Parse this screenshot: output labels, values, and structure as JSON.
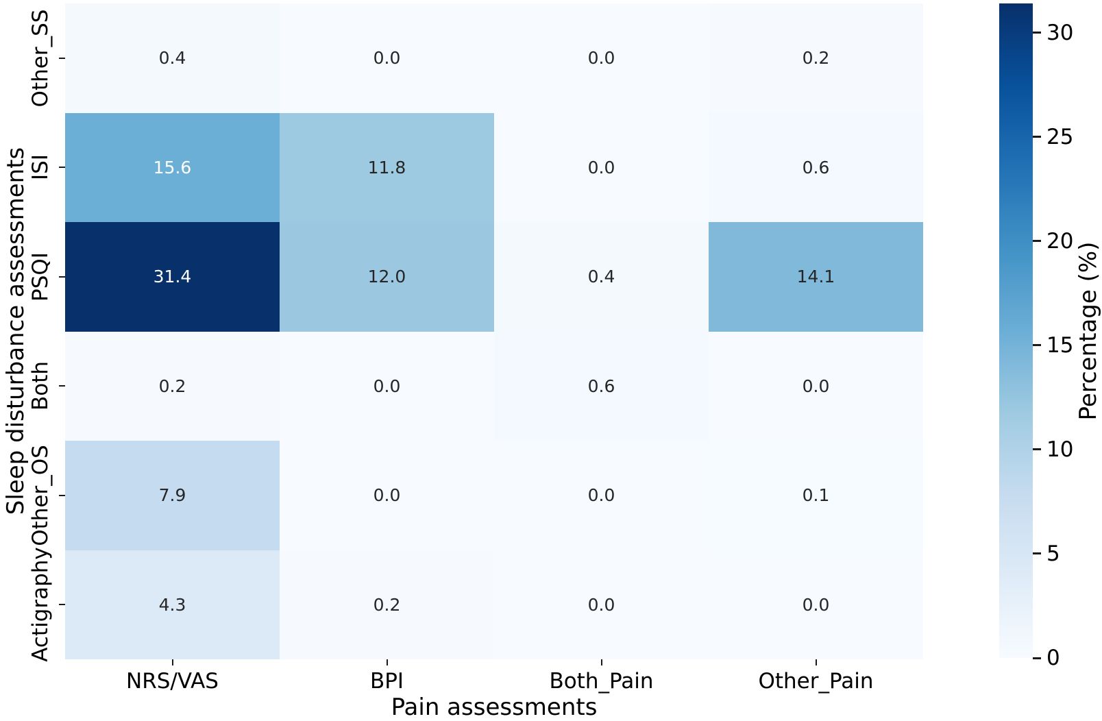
{
  "chart_data": {
    "type": "heatmap",
    "title": "",
    "xlabel": "Pain assessments",
    "ylabel": "Sleep disturbance assessments",
    "x_categories": [
      "NRS/VAS",
      "BPI",
      "Both_Pain",
      "Other_Pain"
    ],
    "y_categories": [
      "Other_SS",
      "ISI",
      "PSQI",
      "Both",
      "Other_OS",
      "Actigraphy"
    ],
    "values": [
      [
        0.4,
        0.0,
        0.0,
        0.2
      ],
      [
        15.6,
        11.8,
        0.0,
        0.6
      ],
      [
        31.4,
        12.0,
        0.4,
        14.1
      ],
      [
        0.2,
        0.0,
        0.6,
        0.0
      ],
      [
        7.9,
        0.0,
        0.0,
        0.1
      ],
      [
        4.3,
        0.2,
        0.0,
        0.0
      ]
    ],
    "value_format_decimals": 1,
    "annotations_on": true,
    "grid": false,
    "colormap": "Blues",
    "vmin": 0,
    "vmax": 31.4,
    "colorbar": {
      "label": "Percentage (%)",
      "ticks": [
        0,
        5,
        10,
        15,
        20,
        25,
        30
      ],
      "position": "right"
    },
    "colors": {
      "colormap_low": "#f7fbff",
      "colormap_high": "#08306b",
      "annotation_dark": "#262626",
      "annotation_light": "#ffffff",
      "axis_text": "#000000",
      "background": "#ffffff"
    }
  }
}
